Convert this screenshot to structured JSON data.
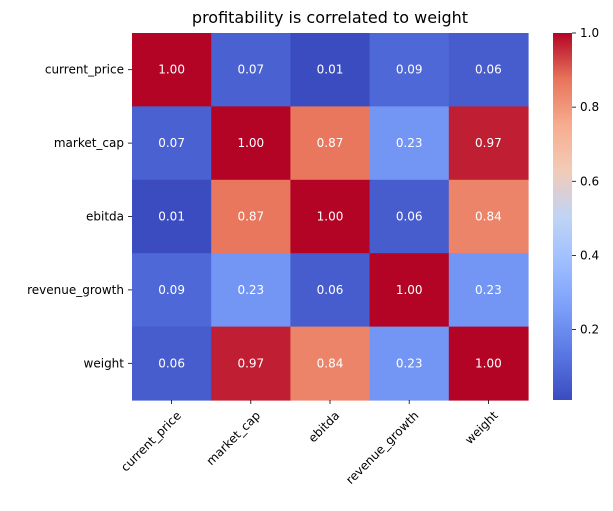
{
  "chart_data": {
    "type": "heatmap",
    "title": "profitability is correlated to weight",
    "xlabel": "",
    "ylabel": "",
    "x_categories": [
      "current_price",
      "market_cap",
      "ebitda",
      "revenue_growth",
      "weight"
    ],
    "y_categories": [
      "current_price",
      "market_cap",
      "ebitda",
      "revenue_growth",
      "weight"
    ],
    "values": [
      [
        1.0,
        0.07,
        0.01,
        0.09,
        0.06
      ],
      [
        0.07,
        1.0,
        0.87,
        0.23,
        0.97
      ],
      [
        0.01,
        0.87,
        1.0,
        0.06,
        0.84
      ],
      [
        0.09,
        0.23,
        0.06,
        1.0,
        0.23
      ],
      [
        0.06,
        0.97,
        0.84,
        0.23,
        1.0
      ]
    ],
    "value_format": "2 decimals",
    "colormap": "coolwarm",
    "color_range": [
      0.01,
      1.0
    ],
    "colorbar": {
      "ticks": [
        0.2,
        0.4,
        0.6,
        0.8,
        1.0
      ],
      "tick_labels": [
        "0.2",
        "0.4",
        "0.6",
        "0.8",
        "1.0"
      ]
    },
    "x_tick_rotation_deg": 45,
    "grid": false,
    "legend": "colorbar-right"
  }
}
